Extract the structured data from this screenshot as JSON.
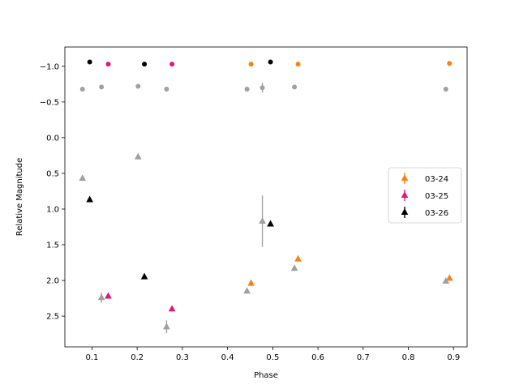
{
  "chart_data": {
    "type": "scatter",
    "xlabel": "Phase",
    "ylabel": "Relative Magnitude",
    "xlim": [
      0.04,
      0.93
    ],
    "ylim": [
      2.93,
      -1.27
    ],
    "y_inverted": true,
    "grid": false,
    "legend_placement": "center-right",
    "xticks": [
      0.1,
      0.2,
      0.3,
      0.4,
      0.5,
      0.6,
      0.7,
      0.8,
      0.9
    ],
    "xtick_labels": [
      "0.1",
      "0.2",
      "0.3",
      "0.4",
      "0.5",
      "0.6",
      "0.7",
      "0.8",
      "0.9"
    ],
    "yticks": [
      -1.0,
      -0.5,
      0.0,
      0.5,
      1.0,
      1.5,
      2.0,
      2.5
    ],
    "ytick_labels": [
      "−1.0",
      "−0.5",
      "0.0",
      "0.5",
      "1.0",
      "1.5",
      "2.0",
      "2.5"
    ],
    "series": [
      {
        "name": "03-24",
        "color": "#ff7f0e",
        "marker": "triangle",
        "points": [
          {
            "x": 0.452,
            "y": 2.04
          },
          {
            "x": 0.556,
            "y": 1.7
          },
          {
            "x": 0.891,
            "y": 1.97
          }
        ]
      },
      {
        "name": "03-25",
        "color": "#e0177b",
        "marker": "triangle",
        "points": [
          {
            "x": 0.136,
            "y": 2.22
          },
          {
            "x": 0.277,
            "y": 2.4
          }
        ]
      },
      {
        "name": "03-26",
        "color": "#000000",
        "marker": "triangle",
        "points": [
          {
            "x": 0.095,
            "y": 0.87
          },
          {
            "x": 0.216,
            "y": 1.95
          },
          {
            "x": 0.495,
            "y": 1.21
          }
        ]
      },
      {
        "color": "#a0a0a0",
        "marker": "triangle",
        "points": [
          {
            "x": 0.079,
            "y": 0.57
          },
          {
            "x": 0.121,
            "y": 2.24,
            "err": 0.07
          },
          {
            "x": 0.202,
            "y": 0.27
          },
          {
            "x": 0.265,
            "y": 2.65,
            "err": 0.09
          },
          {
            "x": 0.443,
            "y": 2.15
          },
          {
            "x": 0.477,
            "y": 1.17,
            "err": 0.36
          },
          {
            "x": 0.548,
            "y": 1.83
          },
          {
            "x": 0.883,
            "y": 2.01
          }
        ]
      },
      {
        "color": "#ff7f0e",
        "marker": "circle",
        "points": [
          {
            "x": 0.452,
            "y": -1.03
          },
          {
            "x": 0.556,
            "y": -1.03
          },
          {
            "x": 0.891,
            "y": -1.04
          }
        ]
      },
      {
        "color": "#e0177b",
        "marker": "circle",
        "points": [
          {
            "x": 0.136,
            "y": -1.03
          },
          {
            "x": 0.277,
            "y": -1.03
          }
        ]
      },
      {
        "color": "#000000",
        "marker": "circle",
        "points": [
          {
            "x": 0.095,
            "y": -1.06
          },
          {
            "x": 0.216,
            "y": -1.03
          },
          {
            "x": 0.495,
            "y": -1.06
          }
        ]
      },
      {
        "color": "#a0a0a0",
        "marker": "circle",
        "points": [
          {
            "x": 0.079,
            "y": -0.68
          },
          {
            "x": 0.121,
            "y": -0.71
          },
          {
            "x": 0.202,
            "y": -0.72
          },
          {
            "x": 0.265,
            "y": -0.68
          },
          {
            "x": 0.443,
            "y": -0.68
          },
          {
            "x": 0.477,
            "y": -0.7,
            "err": 0.07
          },
          {
            "x": 0.548,
            "y": -0.71
          },
          {
            "x": 0.883,
            "y": -0.68
          }
        ]
      }
    ],
    "legend": [
      {
        "label": "03-24",
        "color": "#ff7f0e"
      },
      {
        "label": "03-25",
        "color": "#e0177b"
      },
      {
        "label": "03-26",
        "color": "#000000"
      }
    ]
  }
}
